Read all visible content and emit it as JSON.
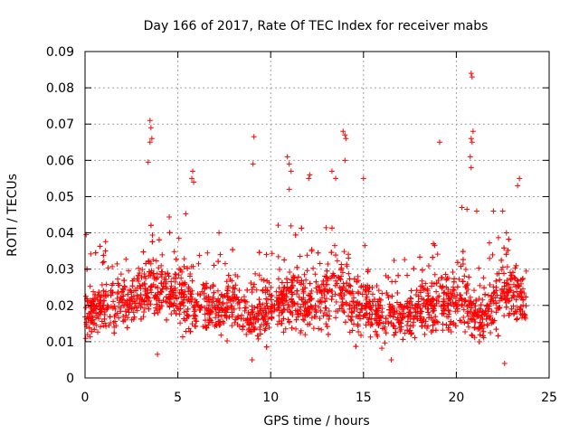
{
  "chart_data": {
    "type": "scatter",
    "title": "Day 166 of 2017, Rate Of TEC Index for receiver mabs",
    "xlabel": "GPS time / hours",
    "ylabel": "ROTI / TECUs",
    "xlim": [
      0,
      25
    ],
    "ylim": [
      0,
      0.09
    ],
    "xticks": [
      0,
      5,
      10,
      15,
      20,
      25
    ],
    "yticks": [
      0,
      0.01,
      0.02,
      0.03,
      0.04,
      0.05,
      0.06,
      0.07,
      0.08,
      0.09
    ],
    "xtick_labels": [
      "0",
      "5",
      "10",
      "15",
      "20",
      "25"
    ],
    "ytick_labels": [
      "0",
      "0.01",
      "0.02",
      "0.03",
      "0.04",
      "0.05",
      "0.06",
      "0.07",
      "0.08",
      "0.09"
    ],
    "grid": true,
    "marker": "plus",
    "color": "#ff0000",
    "x_range_of_data": [
      0,
      23.8
    ],
    "typical_level": [
      0.01,
      0.03
    ],
    "points": [
      [
        3.5,
        0.071
      ],
      [
        3.55,
        0.069
      ],
      [
        3.6,
        0.066
      ],
      [
        3.5,
        0.065
      ],
      [
        3.4,
        0.0595
      ],
      [
        20.8,
        0.084
      ],
      [
        20.85,
        0.083
      ],
      [
        20.9,
        0.068
      ],
      [
        20.8,
        0.066
      ],
      [
        20.85,
        0.065
      ],
      [
        20.75,
        0.061
      ],
      [
        20.8,
        0.058
      ],
      [
        13.9,
        0.068
      ],
      [
        14.0,
        0.067
      ],
      [
        14.05,
        0.066
      ],
      [
        14.0,
        0.06
      ],
      [
        9.1,
        0.0665
      ],
      [
        9.05,
        0.059
      ],
      [
        19.1,
        0.065
      ],
      [
        10.9,
        0.061
      ],
      [
        11.0,
        0.059
      ],
      [
        11.1,
        0.057
      ],
      [
        11.0,
        0.052
      ],
      [
        5.8,
        0.057
      ],
      [
        5.75,
        0.055
      ],
      [
        5.85,
        0.054
      ],
      [
        12.1,
        0.056
      ],
      [
        12.05,
        0.055
      ],
      [
        13.3,
        0.057
      ],
      [
        13.5,
        0.055
      ],
      [
        15.0,
        0.055
      ],
      [
        23.4,
        0.055
      ],
      [
        23.3,
        0.053
      ],
      [
        22.0,
        0.046
      ],
      [
        22.5,
        0.046
      ],
      [
        20.3,
        0.047
      ],
      [
        21.1,
        0.046
      ],
      [
        22.7,
        0.04
      ],
      [
        3.9,
        0.0065
      ],
      [
        22.6,
        0.004
      ],
      [
        16.5,
        0.005
      ],
      [
        9.0,
        0.005
      ]
    ]
  }
}
